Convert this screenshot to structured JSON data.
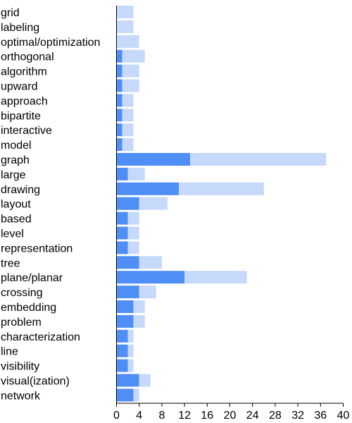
{
  "chart_data": {
    "type": "bar",
    "orientation": "horizontal",
    "stacked": true,
    "categories": [
      "grid",
      "labeling",
      "optimal/optimization",
      "orthogonal",
      "algorithm",
      "upward",
      "approach",
      "bipartite",
      "interactive",
      "model",
      "graph",
      "large",
      "drawing",
      "layout",
      "based",
      "level",
      "representation",
      "tree",
      "plane/planar",
      "crossing",
      "embedding",
      "problem",
      "characterization",
      "line",
      "visibility",
      "visual(ization)",
      "network"
    ],
    "series": [
      {
        "color": "#4f8ef5",
        "values": [
          0,
          0,
          0,
          1,
          1,
          1,
          1,
          1,
          1,
          1,
          13,
          2,
          11,
          4,
          2,
          2,
          2,
          4,
          12,
          4,
          3,
          3,
          2,
          2,
          2,
          4,
          3
        ]
      },
      {
        "color": "#c6d9fb",
        "values": [
          3,
          3,
          4,
          4,
          3,
          3,
          2,
          2,
          2,
          2,
          24,
          3,
          15,
          5,
          2,
          2,
          2,
          4,
          11,
          3,
          2,
          2,
          1,
          1,
          1,
          2,
          1
        ]
      }
    ],
    "xlim": [
      0,
      40
    ],
    "xticks": [
      0,
      4,
      8,
      12,
      16,
      20,
      24,
      28,
      32,
      36,
      40
    ],
    "grid": false,
    "title": "",
    "xlabel": "",
    "ylabel": ""
  }
}
